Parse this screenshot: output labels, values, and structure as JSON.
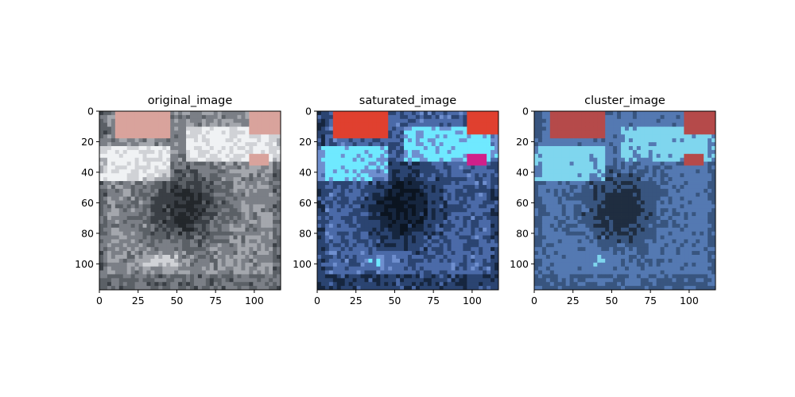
{
  "figure": {
    "layout": "1x3 subplots"
  },
  "chart_data": [
    {
      "type": "heatmap",
      "title": "original_image",
      "description_kind": "rgb-image",
      "xlim": [
        0,
        117
      ],
      "ylim": [
        117,
        0
      ],
      "xticks": [
        0,
        25,
        50,
        75,
        100
      ],
      "yticks": [
        0,
        20,
        40,
        60,
        80,
        100
      ],
      "palette": [
        "#23272b",
        "#3a3f45",
        "#5b6066",
        "#7b7f86",
        "#a4a7ad",
        "#d0d2d6",
        "#f0f2f4",
        "#d9a39c"
      ]
    },
    {
      "type": "heatmap",
      "title": "saturated_image",
      "description_kind": "rgb-image",
      "xlim": [
        0,
        117
      ],
      "ylim": [
        117,
        0
      ],
      "xticks": [
        0,
        25,
        50,
        75,
        100
      ],
      "yticks": [
        0,
        20,
        40,
        60,
        80,
        100
      ],
      "palette": [
        "#0b1420",
        "#16263f",
        "#2b4471",
        "#4b6aa8",
        "#6f8fcf",
        "#92b5e6",
        "#6fe9ff",
        "#e0402f",
        "#d0208a"
      ]
    },
    {
      "type": "heatmap",
      "title": "cluster_image",
      "description_kind": "cluster-labels",
      "xlim": [
        0,
        117
      ],
      "ylim": [
        117,
        0
      ],
      "xticks": [
        0,
        25,
        50,
        75,
        100
      ],
      "yticks": [
        0,
        20,
        40,
        60,
        80,
        100
      ],
      "palette": [
        "#1f2d40",
        "#38557f",
        "#5479b2",
        "#7fd6ee",
        "#b54a4a"
      ]
    }
  ]
}
